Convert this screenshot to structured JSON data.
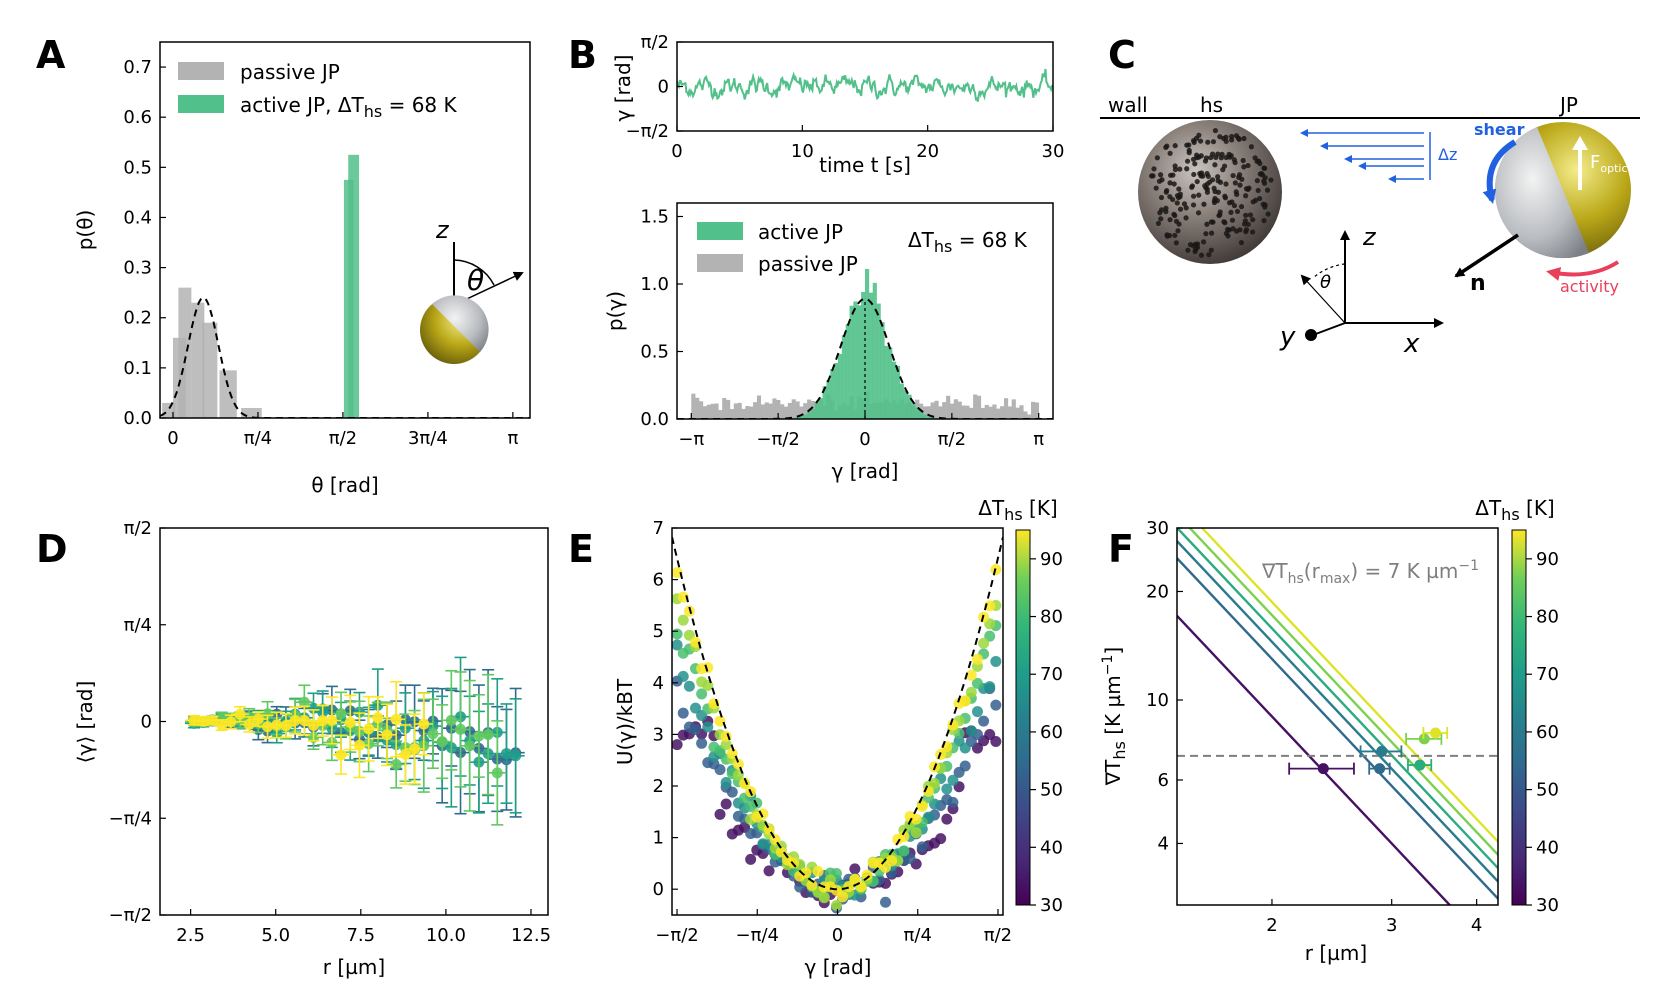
{
  "panels": {
    "A": "A",
    "B": "B",
    "C": "C",
    "D": "D",
    "E": "E",
    "F": "F"
  },
  "chart_data": [
    {
      "panel": "A",
      "type": "bar",
      "xlabel": "θ [rad]",
      "ylabel": "p(θ)",
      "xlim": [
        -0.12,
        3.3
      ],
      "ylim": [
        0,
        0.75
      ],
      "xticks": [
        0,
        0.7854,
        1.5708,
        2.3562,
        3.1416
      ],
      "xtick_labels": [
        "0",
        "π/4",
        "π/2",
        "3π/4",
        "π"
      ],
      "yticks": [
        0.0,
        0.1,
        0.2,
        0.3,
        0.4,
        0.5,
        0.6,
        0.7
      ],
      "ytick_labels": [
        "0.0",
        "0.1",
        "0.2",
        "0.3",
        "0.4",
        "0.5",
        "0.6",
        "0.7"
      ],
      "legend": [
        "passive JP",
        "active JP, ΔT",
        "hs",
        " = 68 K"
      ],
      "series": [
        {
          "name": "passive JP",
          "color": "#b3b3b3",
          "bars": [
            [
              -0.1,
              0.02,
              0.03
            ],
            [
              0.0,
              0.12,
              0.16
            ],
            [
              0.05,
              0.17,
              0.26
            ],
            [
              0.17,
              0.29,
              0.23
            ],
            [
              0.27,
              0.41,
              0.19
            ],
            [
              0.43,
              0.59,
              0.095
            ],
            [
              0.63,
              0.82,
              0.02
            ]
          ]
        },
        {
          "name": "active JP",
          "color": "#52c08a",
          "bars": [
            [
              1.58,
              1.67,
              0.475
            ],
            [
              1.62,
              1.72,
              0.525
            ]
          ]
        }
      ],
      "fit": {
        "mu": 0.28,
        "sigma": 0.14,
        "amp": 0.24
      },
      "inset_labels": {
        "z": "z",
        "theta": "θ"
      }
    },
    {
      "panel": "B-top",
      "type": "line",
      "xlabel": "time t [s]",
      "ylabel": "γ [rad]",
      "xlim": [
        0,
        30
      ],
      "ylim": [
        -1.5708,
        1.5708
      ],
      "xticks": [
        0,
        10,
        20,
        30
      ],
      "xtick_labels": [
        "0",
        "10",
        "20",
        "30"
      ],
      "yticks": [
        -1.5708,
        0,
        1.5708
      ],
      "ytick_labels": [
        "−π/2",
        "0",
        "π/2"
      ],
      "series": [
        {
          "name": "",
          "color": "#52c08a"
        }
      ]
    },
    {
      "panel": "B-bottom",
      "type": "bar",
      "xlabel": "γ [rad]",
      "ylabel": "p(γ)",
      "xlim": [
        -3.4,
        3.4
      ],
      "ylim": [
        0,
        1.6
      ],
      "xticks": [
        -3.1416,
        -1.5708,
        0,
        1.5708,
        3.1416
      ],
      "xtick_labels": [
        "−π",
        "−π/2",
        "0",
        "π/2",
        "π"
      ],
      "yticks": [
        0.0,
        0.5,
        1.0,
        1.5
      ],
      "ytick_labels": [
        "0.0",
        "0.5",
        "1.0",
        "1.5"
      ],
      "legend": [
        "active JP",
        "passive JP"
      ],
      "annotation": [
        "ΔT",
        "hs",
        " = 68 K"
      ],
      "series": [
        {
          "name": "active JP",
          "color": "#52c08a",
          "gauss": {
            "mu": 0,
            "sigma": 0.42,
            "amp": 0.98
          }
        },
        {
          "name": "passive JP",
          "color": "#b3b3b3",
          "level": 0.12
        }
      ],
      "fit": {
        "mu": 0,
        "sigma": 0.44,
        "amp": 0.89
      }
    },
    {
      "panel": "D",
      "type": "scatter",
      "xlabel": "r [µm]",
      "ylabel": "⟨γ⟩ [rad]",
      "xlim": [
        1.6,
        13.0
      ],
      "ylim": [
        -1.5708,
        1.5708
      ],
      "xticks": [
        2.5,
        5.0,
        7.5,
        10.0,
        12.5
      ],
      "xtick_labels": [
        "2.5",
        "5.0",
        "7.5",
        "10.0",
        "12.5"
      ],
      "yticks": [
        -1.5708,
        -0.7854,
        0,
        0.7854,
        1.5708
      ],
      "ytick_labels": [
        "−π/2",
        "−π/4",
        "0",
        "π/4",
        "π/2"
      ]
    },
    {
      "panel": "E",
      "type": "scatter",
      "xlabel": "γ [rad]",
      "ylabel": "U(γ)/kBT",
      "xlim": [
        -1.62,
        1.62
      ],
      "ylim": [
        -0.5,
        7
      ],
      "xticks": [
        -1.5708,
        -0.7854,
        0,
        0.7854,
        1.5708
      ],
      "xtick_labels": [
        "−π/2",
        "−π/4",
        "0",
        "π/4",
        "π/2"
      ],
      "yticks": [
        0,
        1,
        2,
        3,
        4,
        5,
        6,
        7
      ],
      "ytick_labels": [
        "0",
        "1",
        "2",
        "3",
        "4",
        "5",
        "6",
        "7"
      ],
      "colorbar": {
        "label": "ΔT",
        "label_sub": "hs",
        "label_unit": " [K]",
        "range": [
          30,
          95
        ],
        "ticks": [
          30,
          40,
          50,
          60,
          70,
          80,
          90
        ],
        "tick_labels": [
          "30",
          "40",
          "50",
          "60",
          "70",
          "80",
          "90"
        ]
      },
      "fit": {
        "k": 2.6
      }
    },
    {
      "panel": "F",
      "type": "line",
      "xlabel": "r [µm]",
      "ylabel": "∇T",
      "ylabel_sub": "hs",
      "ylabel_unit": " [K µm",
      "ylabel_sup": "−1",
      "ylabel_end": "]",
      "xscale": "log",
      "yscale": "log",
      "xlim": [
        1.45,
        4.3
      ],
      "ylim": [
        2.7,
        30
      ],
      "xticks": [
        2,
        3,
        4
      ],
      "xtick_labels": [
        "2",
        "3",
        "4"
      ],
      "yticks": [
        4,
        6,
        10,
        20,
        30
      ],
      "ytick_labels": [
        "4",
        "6",
        "10",
        "20",
        "30"
      ],
      "hline": 7.0,
      "annotation": [
        "∇T",
        "hs",
        "(r",
        "max",
        ") = 7 K µm",
        "−1"
      ],
      "colorbar": {
        "label": "ΔT",
        "label_sub": "hs",
        "label_unit": " [K]",
        "range": [
          30,
          95
        ],
        "ticks": [
          30,
          40,
          50,
          60,
          70,
          80,
          90
        ],
        "tick_labels": [
          "30",
          "40",
          "50",
          "60",
          "70",
          "80",
          "90"
        ]
      },
      "series": [
        {
          "dT": 33,
          "line_y_at_x2": 9.0,
          "point": [
            2.38,
            6.45
          ],
          "xerr": 0.26
        },
        {
          "dT": 52,
          "line_y_at_x2": 13.0,
          "point": [
            2.88,
            6.45
          ],
          "xerr": 0.1
        },
        {
          "dT": 57,
          "line_y_at_x2": 14.5,
          "point": [
            2.9,
            7.2
          ],
          "xerr": 0.2
        },
        {
          "dT": 70,
          "line_y_at_x2": 15.8,
          "point": [
            3.3,
            6.6
          ],
          "xerr": 0.13
        },
        {
          "dT": 82,
          "line_y_at_x2": 17.2,
          "point": [
            3.35,
            7.8
          ],
          "xerr": 0.2
        },
        {
          "dT": 92,
          "line_y_at_x2": 18.7,
          "point": [
            3.48,
            8.1
          ],
          "xerr": 0.14
        }
      ]
    }
  ],
  "panel_c": {
    "wall": "wall",
    "hs": "hs",
    "jp": "JP",
    "shear": "shear",
    "dz": "Δz",
    "f_optical": "F",
    "f_optical_sub": "optical",
    "n": "n",
    "activity": "activity",
    "z": "z",
    "y": "y",
    "x": "x",
    "theta": "θ",
    "blue": "#2160e0",
    "red": "#e8405a"
  }
}
